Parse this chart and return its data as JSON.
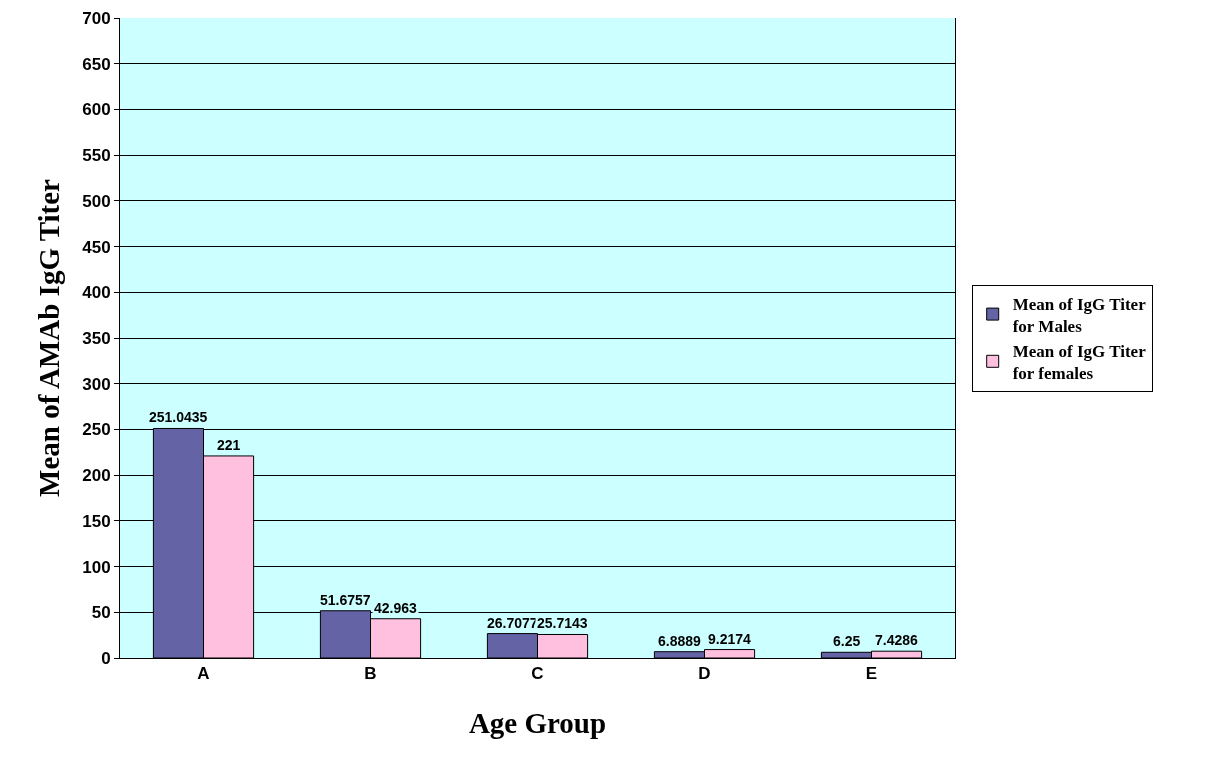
{
  "chart_data": {
    "type": "bar",
    "xlabel": "Age Group",
    "ylabel": "Mean of AMAb IgG Titer",
    "categories": [
      "A",
      "B",
      "C",
      "D",
      "E"
    ],
    "series": [
      {
        "name": "Mean of IgG Titer for Males",
        "color": "#6363a6",
        "values": [
          251.0435,
          51.6757,
          26.7077,
          6.8889,
          6.25
        ]
      },
      {
        "name": "Mean of IgG Titer for females",
        "color": "#ffbfdf",
        "values": [
          221,
          42.963,
          25.7143,
          9.2174,
          7.4286
        ]
      }
    ],
    "ylim": [
      0,
      700
    ],
    "yticks": [
      0,
      50,
      100,
      150,
      200,
      250,
      300,
      350,
      400,
      450,
      500,
      550,
      600,
      650,
      700
    ],
    "grid": "y",
    "legend": "right",
    "data_labels": true
  }
}
